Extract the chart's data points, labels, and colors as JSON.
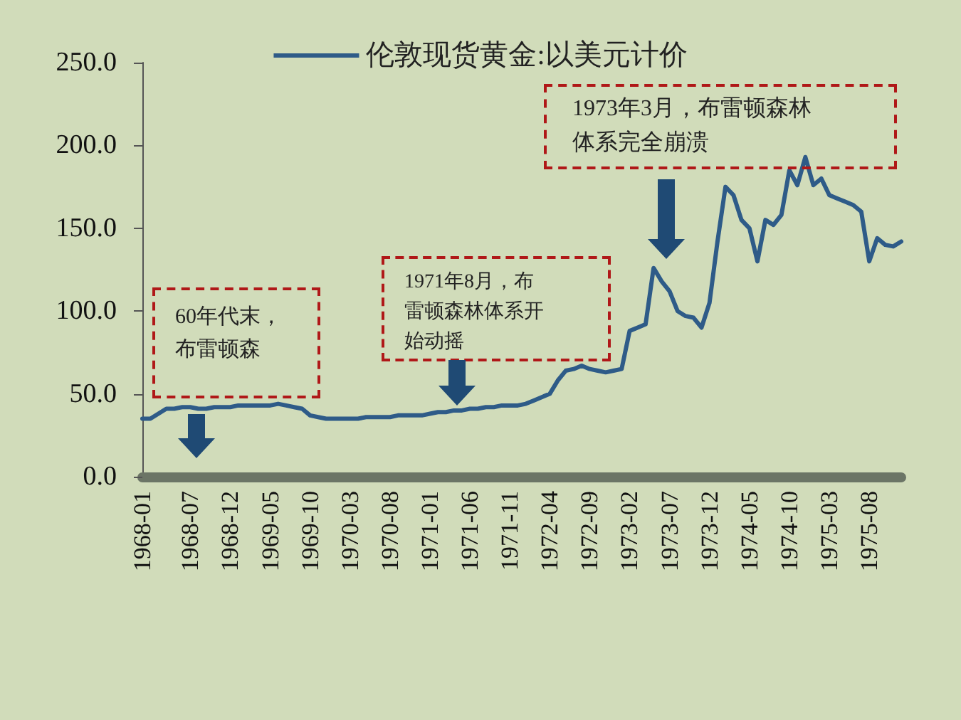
{
  "chart_data": {
    "type": "line",
    "categories": [
      "1968-01",
      null,
      null,
      null,
      null,
      null,
      "1968-07",
      null,
      null,
      null,
      null,
      "1968-12",
      null,
      null,
      null,
      null,
      "1969-05",
      null,
      null,
      null,
      null,
      "1969-10",
      null,
      null,
      null,
      null,
      "1970-03",
      null,
      null,
      null,
      null,
      "1970-08",
      null,
      null,
      null,
      null,
      "1971-01",
      null,
      null,
      null,
      null,
      "1971-06",
      null,
      null,
      null,
      null,
      "1971-11",
      null,
      null,
      null,
      null,
      "1972-04",
      null,
      null,
      null,
      null,
      "1972-09",
      null,
      null,
      null,
      null,
      "1973-02",
      null,
      null,
      null,
      null,
      "1973-07",
      null,
      null,
      null,
      null,
      "1973-12",
      null,
      null,
      null,
      null,
      "1974-05",
      null,
      null,
      null,
      null,
      "1974-10",
      null,
      null,
      null,
      null,
      "1975-03",
      null,
      null,
      null,
      null,
      "1975-08",
      null,
      null,
      null,
      null
    ],
    "series": [
      {
        "name": "伦敦现货黄金:以美元计价",
        "color": "#2e5b88",
        "values": [
          35,
          35,
          38,
          41,
          41,
          42,
          42,
          41,
          41,
          42,
          42,
          42,
          43,
          43,
          43,
          43,
          43,
          44,
          43,
          42,
          41,
          37,
          36,
          35,
          35,
          35,
          35,
          35,
          36,
          36,
          36,
          36,
          37,
          37,
          37,
          37,
          38,
          39,
          39,
          40,
          40,
          41,
          41,
          42,
          42,
          43,
          43,
          43,
          44,
          46,
          48,
          50,
          58,
          64,
          65,
          67,
          65,
          64,
          63,
          64,
          65,
          88,
          90,
          92,
          126,
          118,
          112,
          100,
          97,
          96,
          90,
          105,
          142,
          175,
          170,
          155,
          150,
          130,
          155,
          152,
          158,
          185,
          176,
          193,
          176,
          180,
          170,
          168,
          166,
          164,
          160,
          130,
          144,
          140,
          139,
          142
        ]
      }
    ],
    "ylim": [
      0,
      250
    ],
    "yticks": [
      {
        "value": 0,
        "label": "0.0"
      },
      {
        "value": 50,
        "label": "50.0"
      },
      {
        "value": 100,
        "label": "100.0"
      },
      {
        "value": 150,
        "label": "150.0"
      },
      {
        "value": 200,
        "label": "200.0"
      },
      {
        "value": 250,
        "label": "250.0"
      }
    ],
    "grid": false,
    "legend": "top",
    "marker": "none",
    "line_style": "solid",
    "annotations": [
      "60年代末，布雷顿森",
      "1971年8月，布雷顿森林体系开始动摇",
      "1973年3月，布雷顿森林体系完全崩溃"
    ]
  }
}
